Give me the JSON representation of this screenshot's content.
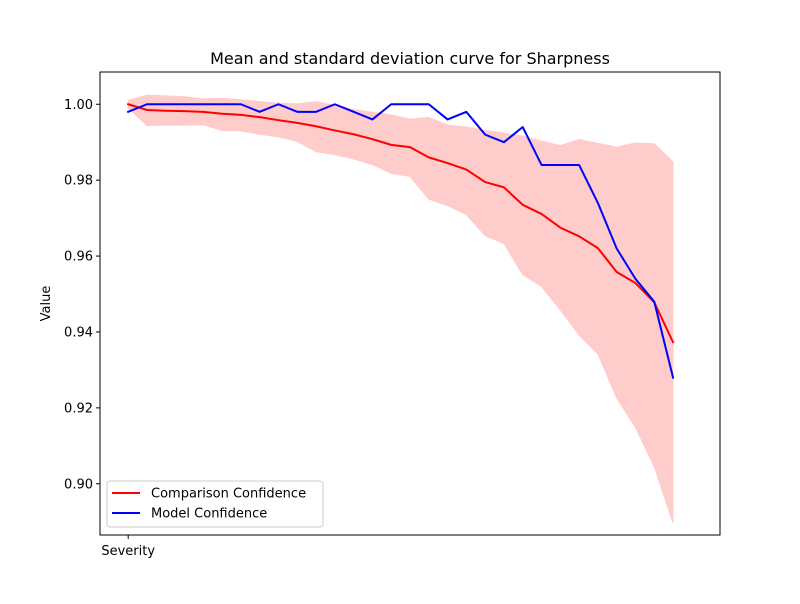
{
  "chart_data": {
    "type": "line",
    "title": "Mean and standard deviation curve for Sharpness",
    "xlabel": "",
    "ylabel": "Value",
    "x_tick_labels": [
      "Severity"
    ],
    "yticks": [
      0.9,
      0.92,
      0.94,
      0.96,
      0.98,
      1.0
    ],
    "ytick_labels": [
      "0.90",
      "0.92",
      "0.94",
      "0.96",
      "0.98",
      "1.00"
    ],
    "ylim": [
      0.8865,
      1.0085
    ],
    "xlim": [
      -1.5,
      31.5
    ],
    "x": [
      0,
      1,
      2,
      3,
      4,
      5,
      6,
      7,
      8,
      9,
      10,
      11,
      12,
      13,
      14,
      15,
      16,
      17,
      18,
      19,
      20,
      21,
      22,
      23,
      24,
      25,
      26,
      27,
      28,
      29
    ],
    "grid": false,
    "legend_position": "lower-left",
    "series": [
      {
        "name": "Comparison Confidence",
        "color": "#ff0000",
        "values": [
          1.0,
          0.9985,
          0.9983,
          0.9982,
          0.998,
          0.9975,
          0.9972,
          0.9966,
          0.9958,
          0.9951,
          0.9942,
          0.9931,
          0.9921,
          0.9908,
          0.9893,
          0.9887,
          0.986,
          0.9845,
          0.9828,
          0.9795,
          0.9781,
          0.9735,
          0.9711,
          0.9675,
          0.9652,
          0.9621,
          0.9558,
          0.9529,
          0.9478,
          0.9373
        ]
      },
      {
        "name": "Model Confidence",
        "color": "#0000ff",
        "values": [
          0.998,
          1.0,
          1.0,
          1.0,
          1.0,
          1.0,
          1.0,
          0.998,
          1.0,
          0.998,
          0.998,
          1.0,
          0.998,
          0.996,
          1.0,
          1.0,
          1.0,
          0.996,
          0.998,
          0.992,
          0.99,
          0.994,
          0.984,
          0.984,
          0.984,
          0.974,
          0.962,
          0.954,
          0.948,
          0.928
        ]
      }
    ],
    "band": {
      "color": "#ffcccc",
      "upper": [
        1.001,
        1.0024,
        1.0022,
        1.002,
        1.0014,
        1.0016,
        1.0012,
        1.0007,
        1.0003,
        1.0001,
        1.0007,
        0.9997,
        0.9986,
        0.9979,
        0.9972,
        0.9961,
        0.9965,
        0.9945,
        0.994,
        0.9931,
        0.9924,
        0.9916,
        0.9903,
        0.9891,
        0.9907,
        0.9897,
        0.9887,
        0.9898,
        0.9896,
        0.9848
      ],
      "lower": [
        0.999,
        0.9944,
        0.9945,
        0.9945,
        0.9946,
        0.9931,
        0.993,
        0.9921,
        0.9914,
        0.9902,
        0.9875,
        0.9867,
        0.9856,
        0.9841,
        0.9818,
        0.981,
        0.975,
        0.9733,
        0.9709,
        0.9654,
        0.9633,
        0.9551,
        0.952,
        0.9458,
        0.9392,
        0.9342,
        0.9226,
        0.9149,
        0.9045,
        0.8897
      ]
    }
  }
}
